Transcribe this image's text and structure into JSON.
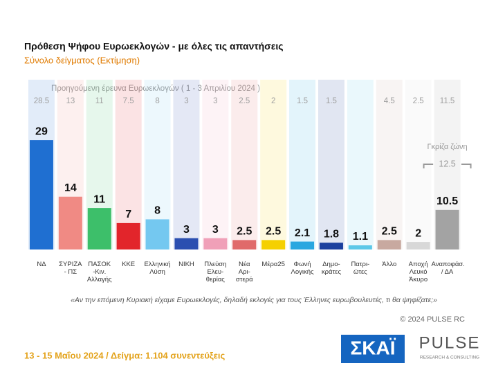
{
  "chart_data": {
    "type": "bar",
    "title": "Πρόθεση Ψήφου Ευρωεκλογών - με όλες τις απαντήσεις",
    "subtitle": "Σύνολο δείγματος   (Εκτίμηση)",
    "categories": [
      "ΝΔ",
      "ΣΥΡΙΖΑ\n- ΠΣ",
      "ΠΑΣΟΚ\n-Κιν.\nΑλλαγής",
      "ΚΚΕ",
      "Ελληνική\nΛύση",
      "ΝΙΚΗ",
      "Πλεύση\nΕλευ-\nθερίας",
      "Νέα\nΑρι-\nστερά",
      "Μέρα25",
      "Φωνή\nΛογικής",
      "Δημο-\nκράτες",
      "Πατρι-\nώτες",
      "Άλλο",
      "Αποχή\nΛευκό\nΆκυρο",
      "Αναποφάσ.\n/ ΔΑ"
    ],
    "values": [
      29,
      14,
      11,
      7,
      8,
      3,
      3,
      2.5,
      2.5,
      2.1,
      1.8,
      1.1,
      2.5,
      2,
      10.5
    ],
    "colors": [
      "#1f6fd1",
      "#f08a84",
      "#3dbf6a",
      "#e2252b",
      "#74c8f0",
      "#2b4fb0",
      "#f0a0b8",
      "#e06a6a",
      "#f5d000",
      "#2aa7e0",
      "#1a3f9e",
      "#5bc8e8",
      "#c8a9a0",
      "#d8d8d8",
      "#a3a3a3"
    ],
    "ylim": [
      0,
      45
    ],
    "previous": {
      "label": "Προηγούμενη έρευνα Ευρωεκλογών ( 1 - 3 Απριλίου 2024 )",
      "values": [
        28.5,
        13,
        11,
        7.5,
        8,
        3,
        3,
        2.5,
        2,
        1.5,
        1.5,
        null,
        4.5,
        2.5,
        11.5
      ]
    },
    "gray_zone": {
      "label": "Γκρίζα ζώνη",
      "value": 12.5
    },
    "question": "«Αν την επόμενη Κυριακή είχαμε Ευρωεκλογές, δηλαδή εκλογές για τους Έλληνες ευρωβουλευτές, τι θα ψηφίζατε;»",
    "copyright": "© 2024 PULSE RC",
    "footer": "13 - 15  Μαΐου 2024  /  Δείγμα:  1.104 συνεντεύξεις",
    "logos": {
      "skai": "ΣΚΑΪ",
      "pulse": "PULSE",
      "pulse_sub": "RESEARCH & CONSULTING"
    }
  }
}
